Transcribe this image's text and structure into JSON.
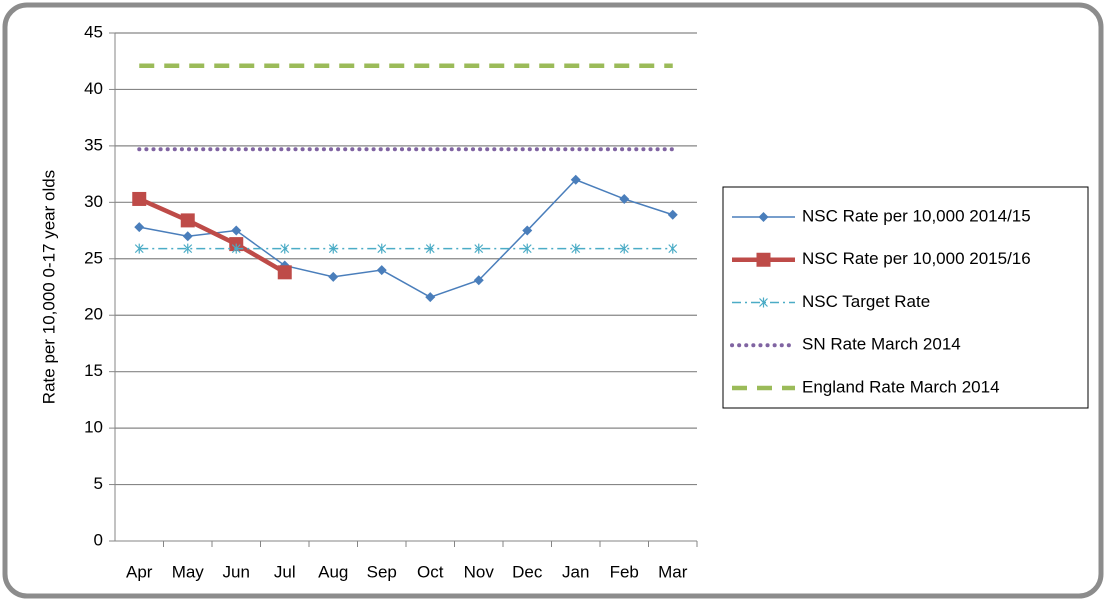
{
  "chart_data": {
    "type": "line",
    "y_label": "Rate per 10,000 0-17 year olds",
    "categories": [
      "Apr",
      "May",
      "Jun",
      "Jul",
      "Aug",
      "Sep",
      "Oct",
      "Nov",
      "Dec",
      "Jan",
      "Feb",
      "Mar"
    ],
    "series": [
      {
        "name": "NSC Rate per 10,000 2014/15",
        "color": "#4a7ebb",
        "line_style": "solid",
        "marker": "diamond",
        "values": [
          27.8,
          27.0,
          27.5,
          24.4,
          23.4,
          24.0,
          21.6,
          23.1,
          27.5,
          32.0,
          30.3,
          28.9
        ]
      },
      {
        "name": "NSC Rate per 10,000 2015/16",
        "color": "#be4b48",
        "line_style": "thick",
        "marker": "square",
        "values": [
          30.3,
          28.4,
          26.3,
          23.8,
          null,
          null,
          null,
          null,
          null,
          null,
          null,
          null
        ]
      },
      {
        "name": "NSC Target Rate",
        "color": "#4bacc6",
        "line_style": "dashdot",
        "marker": "star",
        "values": [
          25.9,
          25.9,
          25.9,
          25.9,
          25.9,
          25.9,
          25.9,
          25.9,
          25.9,
          25.9,
          25.9,
          25.9
        ]
      },
      {
        "name": "SN Rate March 2014",
        "color": "#8064a2",
        "line_style": "dotted",
        "marker": "none",
        "values": [
          34.7,
          34.7,
          34.7,
          34.7,
          34.7,
          34.7,
          34.7,
          34.7,
          34.7,
          34.7,
          34.7,
          34.7
        ]
      },
      {
        "name": "England Rate March 2014",
        "color": "#9bbb59",
        "line_style": "dashed",
        "marker": "none",
        "values": [
          42.1,
          42.1,
          42.1,
          42.1,
          42.1,
          42.1,
          42.1,
          42.1,
          42.1,
          42.1,
          42.1,
          42.1
        ]
      }
    ],
    "ylim": [
      0,
      45
    ],
    "yticks": [
      0,
      5,
      10,
      15,
      20,
      25,
      30,
      35,
      40,
      45
    ],
    "grid": true,
    "legend": "right"
  }
}
